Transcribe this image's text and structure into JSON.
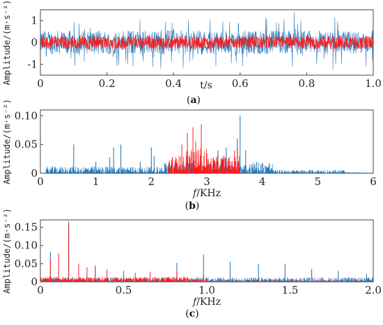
{
  "colors": {
    "blue": "#2b7bba",
    "red": "#ff1a1a",
    "axis": "#444444"
  },
  "captions": {
    "a": "a",
    "b": "b",
    "c": "c"
  },
  "chart_data": [
    {
      "id": "a",
      "type": "line",
      "xlabel": "t/s",
      "ylabel": "Amplitude/(m·s⁻²)",
      "xlim": [
        0,
        1.0
      ],
      "ylim": [
        -1.5,
        1.5
      ],
      "xticks": [
        "0",
        "0.2",
        "0.4",
        "0.6",
        "0.8",
        "1.0"
      ],
      "yticks": [
        "-1",
        "0",
        "1"
      ],
      "series": [
        {
          "color": "blue",
          "description_level": "impulsive vibration between about -1.2 and 1.5"
        },
        {
          "color": "red",
          "description_level": "denoised signal between about -0.3 and 0.3"
        }
      ],
      "x": [
        0.0,
        0.05,
        0.1,
        0.15,
        0.2,
        0.25,
        0.3,
        0.35,
        0.4,
        0.45,
        0.5,
        0.55,
        0.6,
        0.65,
        0.7,
        0.75,
        0.8,
        0.85,
        0.9,
        0.95,
        1.0
      ],
      "values_blue_env": [
        1.3,
        1.2,
        1.1,
        1.2,
        1.5,
        1.1,
        1.2,
        1.3,
        1.4,
        1.2,
        1.1,
        1.3,
        1.2,
        1.1,
        1.2,
        1.5,
        1.2,
        1.1,
        1.3,
        1.2,
        1.2
      ],
      "values_red_env": [
        0.3,
        0.3,
        0.3,
        0.3,
        0.3,
        0.3,
        0.3,
        0.3,
        0.3,
        0.3,
        0.3,
        0.3,
        0.3,
        0.3,
        0.3,
        0.3,
        0.3,
        0.3,
        0.3,
        0.3,
        0.3
      ]
    },
    {
      "id": "b",
      "type": "line",
      "xlabel_italic": "f",
      "xlabel_rest": "/KHz",
      "ylabel": "Amplitude/(m·s⁻²)",
      "xlim": [
        0,
        6
      ],
      "ylim": [
        0,
        0.11
      ],
      "xticks": [
        "0",
        "1",
        "2",
        "3",
        "4",
        "5",
        "6"
      ],
      "yticks": [
        "0",
        "0.05",
        "0.10"
      ],
      "blue_peaks": [
        {
          "x": 0.6,
          "y": 0.05
        },
        {
          "x": 1.0,
          "y": 0.02
        },
        {
          "x": 1.25,
          "y": 0.028
        },
        {
          "x": 1.32,
          "y": 0.045
        },
        {
          "x": 1.45,
          "y": 0.05
        },
        {
          "x": 1.8,
          "y": 0.02
        },
        {
          "x": 2.0,
          "y": 0.045
        },
        {
          "x": 2.05,
          "y": 0.03
        },
        {
          "x": 3.2,
          "y": 0.04
        },
        {
          "x": 3.35,
          "y": 0.045
        },
        {
          "x": 3.55,
          "y": 0.06
        },
        {
          "x": 3.6,
          "y": 0.1
        },
        {
          "x": 3.7,
          "y": 0.04
        },
        {
          "x": 3.9,
          "y": 0.02
        }
      ],
      "red_peaks": [
        {
          "x": 2.5,
          "y": 0.03
        },
        {
          "x": 2.55,
          "y": 0.05
        },
        {
          "x": 2.65,
          "y": 0.07
        },
        {
          "x": 2.75,
          "y": 0.08
        },
        {
          "x": 2.8,
          "y": 0.055
        },
        {
          "x": 2.9,
          "y": 0.085
        },
        {
          "x": 3.0,
          "y": 0.035
        },
        {
          "x": 3.3,
          "y": 0.03
        },
        {
          "x": 3.5,
          "y": 0.04
        },
        {
          "x": 3.55,
          "y": 0.045
        }
      ],
      "red_band": [
        2.3,
        3.6
      ]
    },
    {
      "id": "c",
      "type": "line",
      "xlabel_italic": "f",
      "xlabel_rest": "/KHz",
      "ylabel": "Amplitude/(m·s⁻²)",
      "xlim": [
        0,
        2.0
      ],
      "ylim": [
        0,
        0.17
      ],
      "xticks": [
        "0",
        "0.5",
        "1.0",
        "1.5",
        "2.0"
      ],
      "yticks": [
        "0",
        "0.05",
        "0.10",
        "0.15"
      ],
      "blue_peaks": [
        {
          "x": 0.06,
          "y": 0.083
        },
        {
          "x": 0.17,
          "y": 0.165
        },
        {
          "x": 0.33,
          "y": 0.04
        },
        {
          "x": 0.82,
          "y": 0.052
        },
        {
          "x": 0.98,
          "y": 0.075
        },
        {
          "x": 1.14,
          "y": 0.055
        },
        {
          "x": 1.31,
          "y": 0.05
        },
        {
          "x": 1.47,
          "y": 0.05
        },
        {
          "x": 1.63,
          "y": 0.035
        },
        {
          "x": 1.79,
          "y": 0.03
        },
        {
          "x": 1.96,
          "y": 0.022
        }
      ],
      "red_peaks": [
        {
          "x": 0.06,
          "y": 0.06
        },
        {
          "x": 0.11,
          "y": 0.078
        },
        {
          "x": 0.17,
          "y": 0.155
        },
        {
          "x": 0.23,
          "y": 0.05
        },
        {
          "x": 0.28,
          "y": 0.04
        },
        {
          "x": 0.33,
          "y": 0.045
        },
        {
          "x": 0.4,
          "y": 0.035
        },
        {
          "x": 0.5,
          "y": 0.03
        },
        {
          "x": 0.57,
          "y": 0.025
        },
        {
          "x": 0.66,
          "y": 0.028
        },
        {
          "x": 0.82,
          "y": 0.03
        },
        {
          "x": 0.98,
          "y": 0.02
        }
      ]
    }
  ]
}
